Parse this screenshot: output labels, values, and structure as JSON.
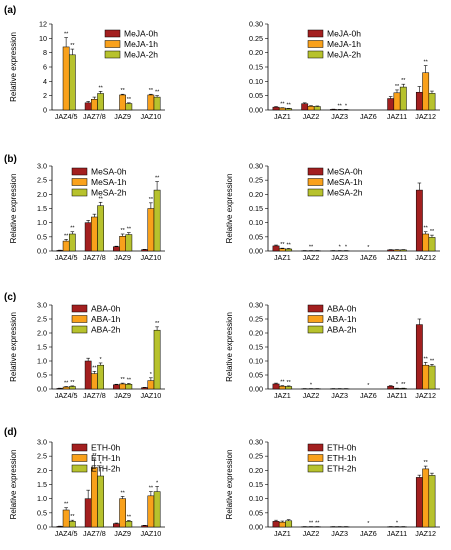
{
  "colors": {
    "h0": "#a31f1f",
    "h1": "#f9a11b",
    "h2": "#b7c22d"
  },
  "panels": [
    {
      "label": "(a)"
    },
    {
      "label": "(b)"
    },
    {
      "label": "(c)"
    },
    {
      "label": "(d)"
    }
  ],
  "chart_data": [
    {
      "type": "bar",
      "panel": "a",
      "title": "",
      "ylabel": "Relative expression",
      "ylim": [
        0,
        12
      ],
      "yticks": [
        0,
        2,
        4,
        6,
        8,
        10,
        12
      ],
      "legend_position": "top-right",
      "categories": [
        "JAZ4/5",
        "JAZ7/8",
        "JAZ9",
        "JAZ10"
      ],
      "series": [
        {
          "name": "MeJA-0h",
          "values": [
            0,
            1.0,
            0,
            0
          ],
          "errors": [
            0,
            0.2,
            0,
            0
          ],
          "sig": [
            "",
            "",
            "",
            ""
          ]
        },
        {
          "name": "MeJA-1h",
          "values": [
            8.8,
            1.5,
            2.1,
            2.1
          ],
          "errors": [
            1.3,
            0.3,
            0.1,
            0.1
          ],
          "sig": [
            "**",
            "",
            "**",
            "**"
          ]
        },
        {
          "name": "MeJA-2h",
          "values": [
            7.7,
            2.3,
            0.9,
            1.8
          ],
          "errors": [
            0.8,
            0.3,
            0.1,
            0.2
          ],
          "sig": [
            "**",
            "**",
            "**",
            "**"
          ]
        }
      ]
    },
    {
      "type": "bar",
      "panel": "a",
      "title": "",
      "ylabel": "",
      "ylim": [
        0,
        0.3
      ],
      "yticks": [
        0,
        0.05,
        0.1,
        0.15,
        0.2,
        0.25,
        0.3
      ],
      "legend_position": "top-left",
      "categories": [
        "JAZ1",
        "JAZ2",
        "JAZ3",
        "JAZ6",
        "JAZ11",
        "JAZ12"
      ],
      "series": [
        {
          "name": "MeJA-0h",
          "values": [
            0.01,
            0.022,
            0.002,
            0,
            0.04,
            0.062
          ],
          "errors": [
            0.002,
            0.003,
            0.001,
            0,
            0.007,
            0.02
          ],
          "sig": [
            "",
            "",
            "",
            "",
            "",
            ""
          ]
        },
        {
          "name": "MeJA-1h",
          "values": [
            0.007,
            0.013,
            0.001,
            0,
            0.06,
            0.13
          ],
          "errors": [
            0.001,
            0.002,
            0.001,
            0,
            0.01,
            0.025
          ],
          "sig": [
            "**",
            "",
            "**",
            "",
            "**",
            "**"
          ]
        },
        {
          "name": "MeJA-2h",
          "values": [
            0.005,
            0.012,
            0.001,
            0,
            0.08,
            0.058
          ],
          "errors": [
            0.001,
            0.002,
            0.001,
            0,
            0.01,
            0.008
          ],
          "sig": [
            "**",
            "",
            "*",
            "",
            "**",
            ""
          ]
        }
      ]
    },
    {
      "type": "bar",
      "panel": "b",
      "title": "",
      "ylabel": "Relative expression",
      "ylim": [
        0,
        3.0
      ],
      "yticks": [
        0,
        0.5,
        1.0,
        1.5,
        2.0,
        2.5,
        3.0
      ],
      "legend_position": "top-left",
      "categories": [
        "JAZ4/5",
        "JAZ7/8",
        "JAZ9",
        "JAZ10"
      ],
      "series": [
        {
          "name": "MeSA-0h",
          "values": [
            0.02,
            1.0,
            0.15,
            0.05
          ],
          "errors": [
            0.01,
            0.08,
            0.02,
            0.01
          ],
          "sig": [
            "",
            "",
            "",
            ""
          ]
        },
        {
          "name": "MeSA-1h",
          "values": [
            0.35,
            1.2,
            0.52,
            1.5
          ],
          "errors": [
            0.06,
            0.1,
            0.08,
            0.2
          ],
          "sig": [
            "**",
            "",
            "**",
            "**"
          ]
        },
        {
          "name": "MeSA-2h",
          "values": [
            0.6,
            1.6,
            0.58,
            2.15
          ],
          "errors": [
            0.08,
            0.12,
            0.07,
            0.3
          ],
          "sig": [
            "**",
            "**",
            "**",
            "**"
          ]
        }
      ]
    },
    {
      "type": "bar",
      "panel": "b",
      "title": "",
      "ylabel": "Relative expression",
      "ylim": [
        0,
        0.3
      ],
      "yticks": [
        0,
        0.05,
        0.1,
        0.15,
        0.2,
        0.25,
        0.3
      ],
      "legend_position": "top-left",
      "categories": [
        "JAZ1",
        "JAZ2",
        "JAZ3",
        "JAZ6",
        "JAZ11",
        "JAZ12"
      ],
      "series": [
        {
          "name": "MeSA-0h",
          "values": [
            0.018,
            0.001,
            0.001,
            0,
            0.004,
            0.215
          ],
          "errors": [
            0.003,
            0.0005,
            0.0005,
            0,
            0.001,
            0.025
          ],
          "sig": [
            "",
            "",
            "",
            "",
            "",
            ""
          ]
        },
        {
          "name": "MeSA-1h",
          "values": [
            0.008,
            0.001,
            0.001,
            0,
            0.004,
            0.06
          ],
          "errors": [
            0.002,
            0.0005,
            0.0005,
            0,
            0.001,
            0.008
          ],
          "sig": [
            "**",
            "**",
            "*",
            "*",
            "",
            "**"
          ]
        },
        {
          "name": "MeSA-2h",
          "values": [
            0.007,
            0.001,
            0.001,
            0,
            0.004,
            0.048
          ],
          "errors": [
            0.002,
            0.0005,
            0.0005,
            0,
            0.001,
            0.008
          ],
          "sig": [
            "**",
            "",
            "*",
            "",
            "",
            "**"
          ]
        }
      ]
    },
    {
      "type": "bar",
      "panel": "c",
      "title": "",
      "ylabel": "Relative expression",
      "ylim": [
        0,
        3.0
      ],
      "yticks": [
        0,
        0.5,
        1.0,
        1.5,
        2.0,
        2.5,
        3.0
      ],
      "legend_position": "top-left",
      "categories": [
        "JAZ4/5",
        "JAZ7/8",
        "JAZ9",
        "JAZ10"
      ],
      "series": [
        {
          "name": "ABA-0h",
          "values": [
            0.02,
            1.0,
            0.15,
            0.05
          ],
          "errors": [
            0.01,
            0.1,
            0.02,
            0.01
          ],
          "sig": [
            "",
            "",
            "",
            ""
          ]
        },
        {
          "name": "ABA-1h",
          "values": [
            0.07,
            0.55,
            0.18,
            0.3
          ],
          "errors": [
            0.02,
            0.08,
            0.03,
            0.1
          ],
          "sig": [
            "**",
            "**",
            "**",
            "*"
          ]
        },
        {
          "name": "ABA-2h",
          "values": [
            0.09,
            0.85,
            0.17,
            2.1
          ],
          "errors": [
            0.02,
            0.08,
            0.03,
            0.12
          ],
          "sig": [
            "**",
            "*",
            "**",
            "**"
          ]
        }
      ]
    },
    {
      "type": "bar",
      "panel": "c",
      "title": "",
      "ylabel": "Relative expression",
      "ylim": [
        0,
        0.3
      ],
      "yticks": [
        0,
        0.05,
        0.1,
        0.15,
        0.2,
        0.25,
        0.3
      ],
      "legend_position": "top-left",
      "categories": [
        "JAZ1",
        "JAZ2",
        "JAZ3",
        "JAZ6",
        "JAZ11",
        "JAZ12"
      ],
      "series": [
        {
          "name": "ABA-0h",
          "values": [
            0.018,
            0.001,
            0.001,
            0,
            0.01,
            0.23
          ],
          "errors": [
            0.003,
            0.0005,
            0.0005,
            0,
            0.002,
            0.02
          ],
          "sig": [
            "",
            "",
            "",
            "",
            "",
            ""
          ]
        },
        {
          "name": "ABA-1h",
          "values": [
            0.01,
            0.001,
            0.001,
            0,
            0.002,
            0.085
          ],
          "errors": [
            0.002,
            0.0005,
            0.0005,
            0,
            0.001,
            0.01
          ],
          "sig": [
            "**",
            "*",
            "",
            "*",
            "*",
            "**"
          ]
        },
        {
          "name": "ABA-2h",
          "values": [
            0.009,
            0.001,
            0.001,
            0,
            0.002,
            0.082
          ],
          "errors": [
            0.002,
            0.0005,
            0.0005,
            0,
            0.001,
            0.006
          ],
          "sig": [
            "**",
            "",
            "",
            "",
            "**",
            "**"
          ]
        }
      ]
    },
    {
      "type": "bar",
      "panel": "d",
      "title": "",
      "ylabel": "Relative expression",
      "ylim": [
        0,
        3.0
      ],
      "yticks": [
        0,
        0.5,
        1.0,
        1.5,
        2.0,
        2.5,
        3.0
      ],
      "legend_position": "top-left",
      "categories": [
        "JAZ4/5",
        "JAZ7/8",
        "JAZ9",
        "JAZ10"
      ],
      "series": [
        {
          "name": "ETH-0h",
          "values": [
            0.02,
            1.0,
            0.12,
            0.05
          ],
          "errors": [
            0.01,
            0.3,
            0.02,
            0.01
          ],
          "sig": [
            "",
            "",
            "",
            ""
          ]
        },
        {
          "name": "ETH-1h",
          "values": [
            0.6,
            2.1,
            1.0,
            1.1
          ],
          "errors": [
            0.08,
            0.3,
            0.08,
            0.15
          ],
          "sig": [
            "**",
            "**",
            "**",
            "**"
          ]
        },
        {
          "name": "ETH-2h",
          "values": [
            0.2,
            1.8,
            0.2,
            1.25
          ],
          "errors": [
            0.04,
            0.3,
            0.03,
            0.18
          ],
          "sig": [
            "**",
            "*",
            "**",
            "*"
          ]
        }
      ]
    },
    {
      "type": "bar",
      "panel": "d",
      "title": "",
      "ylabel": "Relative expression",
      "ylim": [
        0,
        0.3
      ],
      "yticks": [
        0,
        0.05,
        0.1,
        0.15,
        0.2,
        0.25,
        0.3
      ],
      "legend_position": "top-left",
      "categories": [
        "JAZ1",
        "JAZ2",
        "JAZ3",
        "JAZ6",
        "JAZ11",
        "JAZ12"
      ],
      "series": [
        {
          "name": "ETH-0h",
          "values": [
            0.02,
            0.001,
            0.001,
            0,
            0.001,
            0.175
          ],
          "errors": [
            0.004,
            0.0005,
            0.0005,
            0,
            0.0005,
            0.008
          ],
          "sig": [
            "",
            "",
            "",
            "",
            "",
            ""
          ]
        },
        {
          "name": "ETH-1h",
          "values": [
            0.017,
            0.001,
            0.001,
            0,
            0.001,
            0.205
          ],
          "errors": [
            0.004,
            0.0005,
            0.0005,
            0,
            0.0005,
            0.01
          ],
          "sig": [
            "",
            "**",
            "",
            "*",
            "*",
            "**"
          ]
        },
        {
          "name": "ETH-2h",
          "values": [
            0.022,
            0.001,
            0.001,
            0,
            0.001,
            0.182
          ],
          "errors": [
            0.004,
            0.0005,
            0.0005,
            0,
            0.0005,
            0.008
          ],
          "sig": [
            "",
            "**",
            "",
            "",
            "",
            ""
          ]
        }
      ]
    }
  ]
}
